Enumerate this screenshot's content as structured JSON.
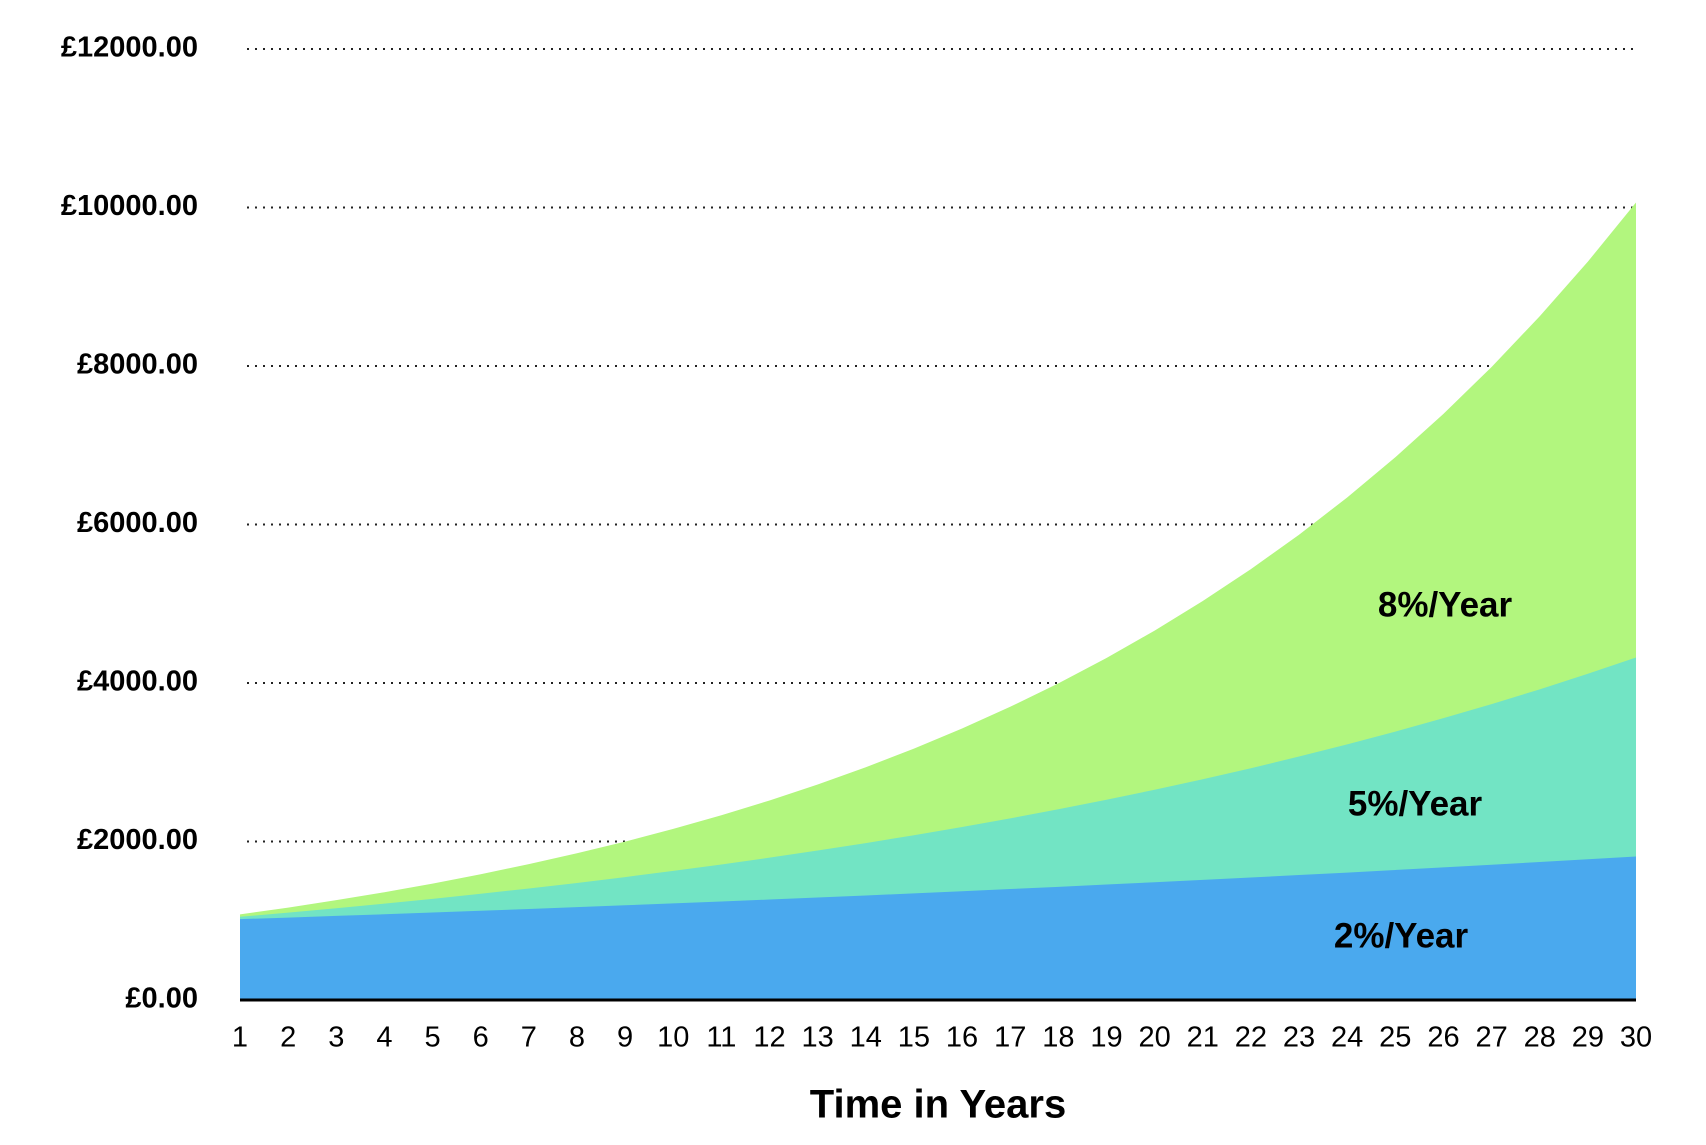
{
  "chart_data": {
    "type": "area",
    "xlabel": "Time in Years",
    "x": [
      1,
      2,
      3,
      4,
      5,
      6,
      7,
      8,
      9,
      10,
      11,
      12,
      13,
      14,
      15,
      16,
      17,
      18,
      19,
      20,
      21,
      22,
      23,
      24,
      25,
      26,
      27,
      28,
      29,
      30
    ],
    "xlim": [
      1,
      30
    ],
    "xticks": [
      1,
      2,
      3,
      4,
      5,
      6,
      7,
      8,
      9,
      10,
      11,
      12,
      13,
      14,
      15,
      16,
      17,
      18,
      19,
      20,
      21,
      22,
      23,
      24,
      25,
      26,
      27,
      28,
      29,
      30
    ],
    "ylim": [
      0,
      12000
    ],
    "yticks": [
      {
        "value": 0,
        "label": "£0.00"
      },
      {
        "value": 2000,
        "label": "£2000.00"
      },
      {
        "value": 4000,
        "label": "£4000.00"
      },
      {
        "value": 6000,
        "label": "£6000.00"
      },
      {
        "value": 8000,
        "label": "£8000.00"
      },
      {
        "value": 10000,
        "label": "£10000.00"
      },
      {
        "value": 12000,
        "label": "£12000.00"
      }
    ],
    "grid": true,
    "series": [
      {
        "name": "8%/Year",
        "color": "#b2f67e",
        "values": [
          1080,
          1166,
          1260,
          1360,
          1469,
          1587,
          1714,
          1851,
          1999,
          2159,
          2332,
          2518,
          2720,
          2937,
          3172,
          3426,
          3700,
          3996,
          4316,
          4661,
          5034,
          5437,
          5871,
          6341,
          6848,
          7396,
          7988,
          8627,
          9317,
          10063
        ]
      },
      {
        "name": "5%/Year",
        "color": "#72e4c4",
        "values": [
          1050,
          1103,
          1158,
          1216,
          1276,
          1340,
          1407,
          1477,
          1551,
          1629,
          1710,
          1796,
          1886,
          1980,
          2079,
          2183,
          2292,
          2407,
          2527,
          2653,
          2786,
          2925,
          3072,
          3225,
          3386,
          3556,
          3733,
          3920,
          4116,
          4322
        ]
      },
      {
        "name": "2%/Year",
        "color": "#4aa9ee",
        "values": [
          1020,
          1040,
          1061,
          1082,
          1104,
          1126,
          1149,
          1172,
          1195,
          1219,
          1243,
          1268,
          1294,
          1319,
          1346,
          1373,
          1400,
          1428,
          1457,
          1486,
          1516,
          1546,
          1577,
          1608,
          1641,
          1673,
          1707,
          1741,
          1776,
          1811
        ]
      }
    ]
  }
}
